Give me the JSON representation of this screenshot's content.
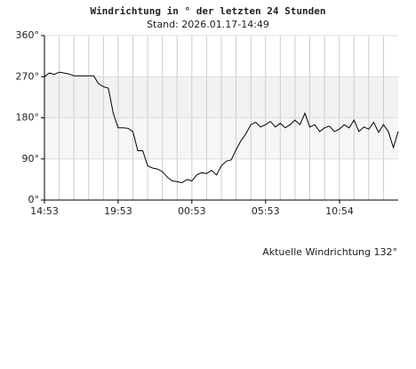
{
  "chart_data": {
    "type": "line",
    "title": "Windrichtung in ° der letzten 24 Stunden",
    "subtitle": "Stand: 2026.01.17-14:49",
    "annotation": "Aktuelle Windrichtung 132°",
    "color": "#000000",
    "xlim": [
      0,
      24
    ],
    "xticks": [
      {
        "value": 0,
        "label": "14:53"
      },
      {
        "value": 5,
        "label": "19:53"
      },
      {
        "value": 10,
        "label": "00:53"
      },
      {
        "value": 15,
        "label": "05:53"
      },
      {
        "value": 20.02,
        "label": "10:54"
      }
    ],
    "ylim": [
      0,
      360
    ],
    "yticks": [
      {
        "value": 0,
        "label": "0°"
      },
      {
        "value": 90,
        "label": "90°"
      },
      {
        "value": 180,
        "label": "180°"
      },
      {
        "value": 270,
        "label": "270°"
      },
      {
        "value": 360,
        "label": "360°"
      }
    ],
    "grid": true,
    "values": [
      270,
      278,
      275,
      280,
      278,
      276,
      272,
      272,
      272,
      272,
      272,
      255,
      248,
      245,
      190,
      158,
      158,
      157,
      150,
      108,
      108,
      75,
      70,
      68,
      62,
      50,
      42,
      40,
      38,
      45,
      42,
      55,
      60,
      58,
      65,
      55,
      75,
      85,
      88,
      110,
      130,
      145,
      165,
      170,
      160,
      165,
      172,
      160,
      168,
      158,
      165,
      175,
      165,
      190,
      160,
      165,
      150,
      158,
      162,
      150,
      155,
      165,
      158,
      175,
      150,
      160,
      155,
      170,
      148,
      165,
      150,
      115,
      150
    ]
  }
}
